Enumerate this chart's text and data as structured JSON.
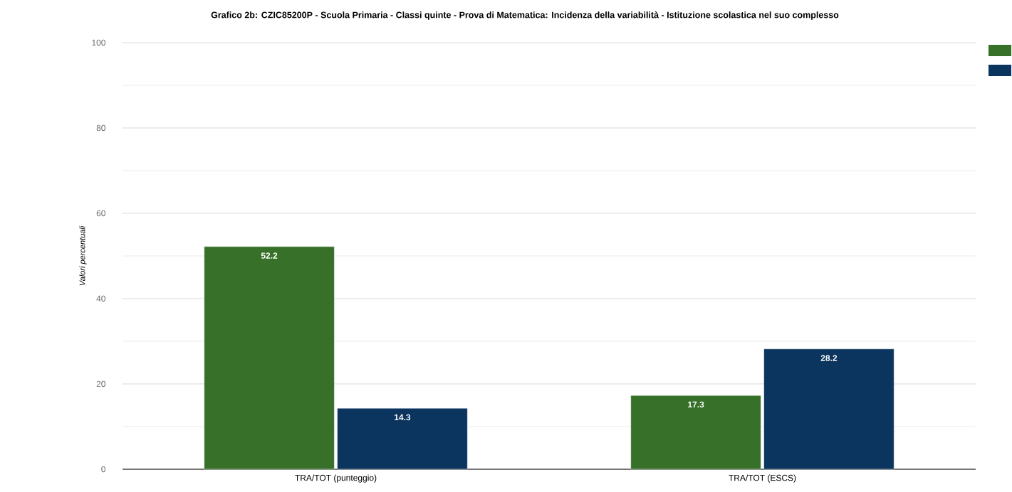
{
  "chart_data": {
    "type": "bar",
    "title": "Grafico 2b: CZIC85200P - Scuola Primaria - Classi quinte - Prova di Matematica: Incidenza della variabilità - Istituzione scolastica nel suo complesso",
    "ylabel": "Valori percentuali",
    "categories": [
      "TRA/TOT (punteggio)",
      "TRA/TOT (ESCS)"
    ],
    "series": [
      {
        "color": "#367029",
        "values": [
          52.2,
          17.3
        ]
      },
      {
        "color": "#0b355e",
        "values": [
          14.3,
          28.2
        ]
      }
    ],
    "ylim": [
      0,
      100
    ],
    "yticks": [
      0,
      20,
      40,
      60,
      80,
      100
    ],
    "grid": true,
    "data_labels": true
  }
}
